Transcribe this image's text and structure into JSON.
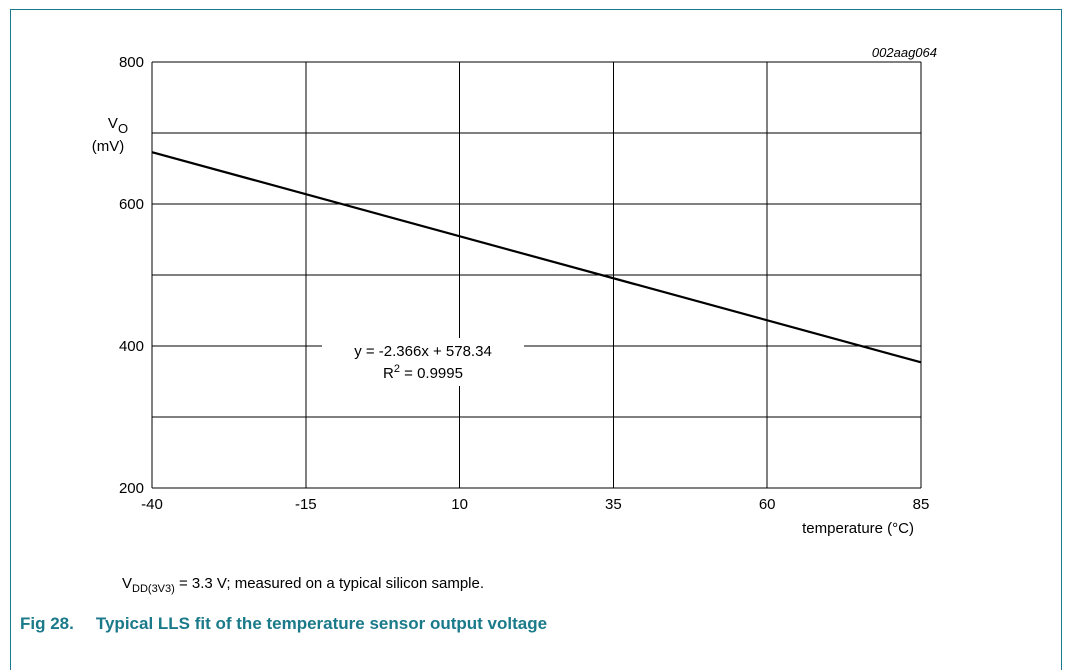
{
  "code_label": "002aag064",
  "condition": {
    "prefix": "V",
    "subscript": "DD(3V3)",
    "suffix": " = 3.3 V; measured on a typical silicon sample."
  },
  "figure": {
    "number": "Fig 28.",
    "title": "Typical LLS fit of the temperature sensor output voltage"
  },
  "colors": {
    "accent": "#1a7a8a",
    "line": "#000000"
  },
  "chart_data": {
    "type": "line",
    "xlabel": "temperature (°C)",
    "ylabel_main": "V",
    "ylabel_sub": "O",
    "ylabel_unit": "(mV)",
    "xlim": [
      -40,
      85
    ],
    "ylim": [
      200,
      800
    ],
    "xticks": [
      -40,
      -15,
      10,
      35,
      60,
      85
    ],
    "yticks": [
      200,
      400,
      600,
      800
    ],
    "ygrid": [
      200,
      300,
      400,
      500,
      600,
      700,
      800
    ],
    "grid": true,
    "series": [
      {
        "x": [
          -40,
          85
        ],
        "y": [
          673,
          377
        ]
      }
    ],
    "annotation": {
      "equation": "y = -2.366x + 578.34",
      "r2_prefix": "R",
      "r2_sup": "2",
      "r2_suffix": " = 0.9995"
    }
  }
}
